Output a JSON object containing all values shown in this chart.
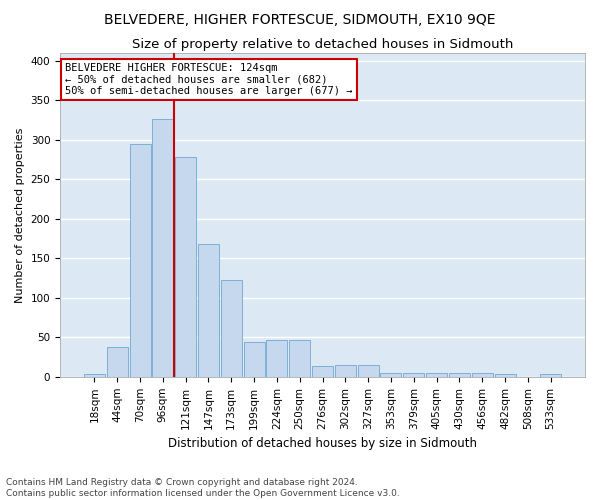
{
  "title1": "BELVEDERE, HIGHER FORTESCUE, SIDMOUTH, EX10 9QE",
  "title2": "Size of property relative to detached houses in Sidmouth",
  "xlabel": "Distribution of detached houses by size in Sidmouth",
  "ylabel": "Number of detached properties",
  "footer1": "Contains HM Land Registry data © Crown copyright and database right 2024.",
  "footer2": "Contains public sector information licensed under the Open Government Licence v3.0.",
  "bar_labels": [
    "18sqm",
    "44sqm",
    "70sqm",
    "96sqm",
    "121sqm",
    "147sqm",
    "173sqm",
    "199sqm",
    "224sqm",
    "250sqm",
    "276sqm",
    "302sqm",
    "327sqm",
    "353sqm",
    "379sqm",
    "405sqm",
    "430sqm",
    "456sqm",
    "482sqm",
    "508sqm",
    "533sqm"
  ],
  "bar_values": [
    4,
    38,
    295,
    327,
    278,
    168,
    122,
    44,
    46,
    46,
    14,
    15,
    15,
    5,
    5,
    5,
    5,
    5,
    3,
    0,
    3
  ],
  "bar_color": "#c5d8ed",
  "bar_edge_color": "#6fa8d0",
  "annotation_line1": "BELVEDERE HIGHER FORTESCUE: 124sqm",
  "annotation_line2": "← 50% of detached houses are smaller (682)",
  "annotation_line3": "50% of semi-detached houses are larger (677) →",
  "vline_color": "#cc0000",
  "annotation_box_color": "white",
  "annotation_box_edge_color": "#cc0000",
  "bg_color": "#dce9f5",
  "ylim": [
    0,
    410
  ],
  "yticks": [
    0,
    50,
    100,
    150,
    200,
    250,
    300,
    350,
    400
  ],
  "grid_color": "#ffffff",
  "title1_fontsize": 10,
  "title2_fontsize": 9.5,
  "xlabel_fontsize": 8.5,
  "ylabel_fontsize": 8,
  "tick_fontsize": 7.5,
  "footer_fontsize": 6.5,
  "annot_fontsize": 7.5
}
